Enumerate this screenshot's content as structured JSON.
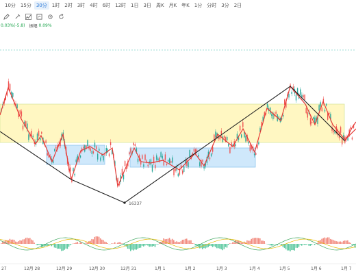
{
  "toolbar": {
    "timeframes": [
      "10分",
      "15分",
      "30分",
      "1时",
      "2时",
      "3时",
      "4时",
      "6时",
      "12时",
      "1日",
      "3日",
      "周K",
      "月K",
      "年K",
      "1分",
      "分时",
      "3分",
      "2日"
    ],
    "active_index": 2
  },
  "tools": [
    "pencil-icon",
    "brush-icon",
    "indicator-icon",
    "chart-style-icon",
    "settings-icon",
    "replay-icon"
  ],
  "info": {
    "change": "0.03%(-5.8)",
    "amplitude_label": "振幅",
    "amplitude_value": "0.09%"
  },
  "chart": {
    "low_label": "16337",
    "x_labels": [
      "27",
      "12月 28",
      "12月 29",
      "12月 30",
      "12月 31",
      "1月 1",
      "1月 2",
      "1月 3",
      "1月 4",
      "1月 5",
      "1月 6",
      "1月 7"
    ],
    "colors": {
      "up": "#26a69a",
      "down": "#ef5350",
      "zigzag_red": "#e53935",
      "zigzag_black": "#222222",
      "yellow_zone": "#fff7c2",
      "blue_zone": "#cfe8fb",
      "macd_pos": "#f28a7e",
      "macd_neg": "#5cc9a0",
      "dif_line": "#3ba55c",
      "dea_line": "#e6b800",
      "dashed_line": "#7fd3c8"
    }
  }
}
